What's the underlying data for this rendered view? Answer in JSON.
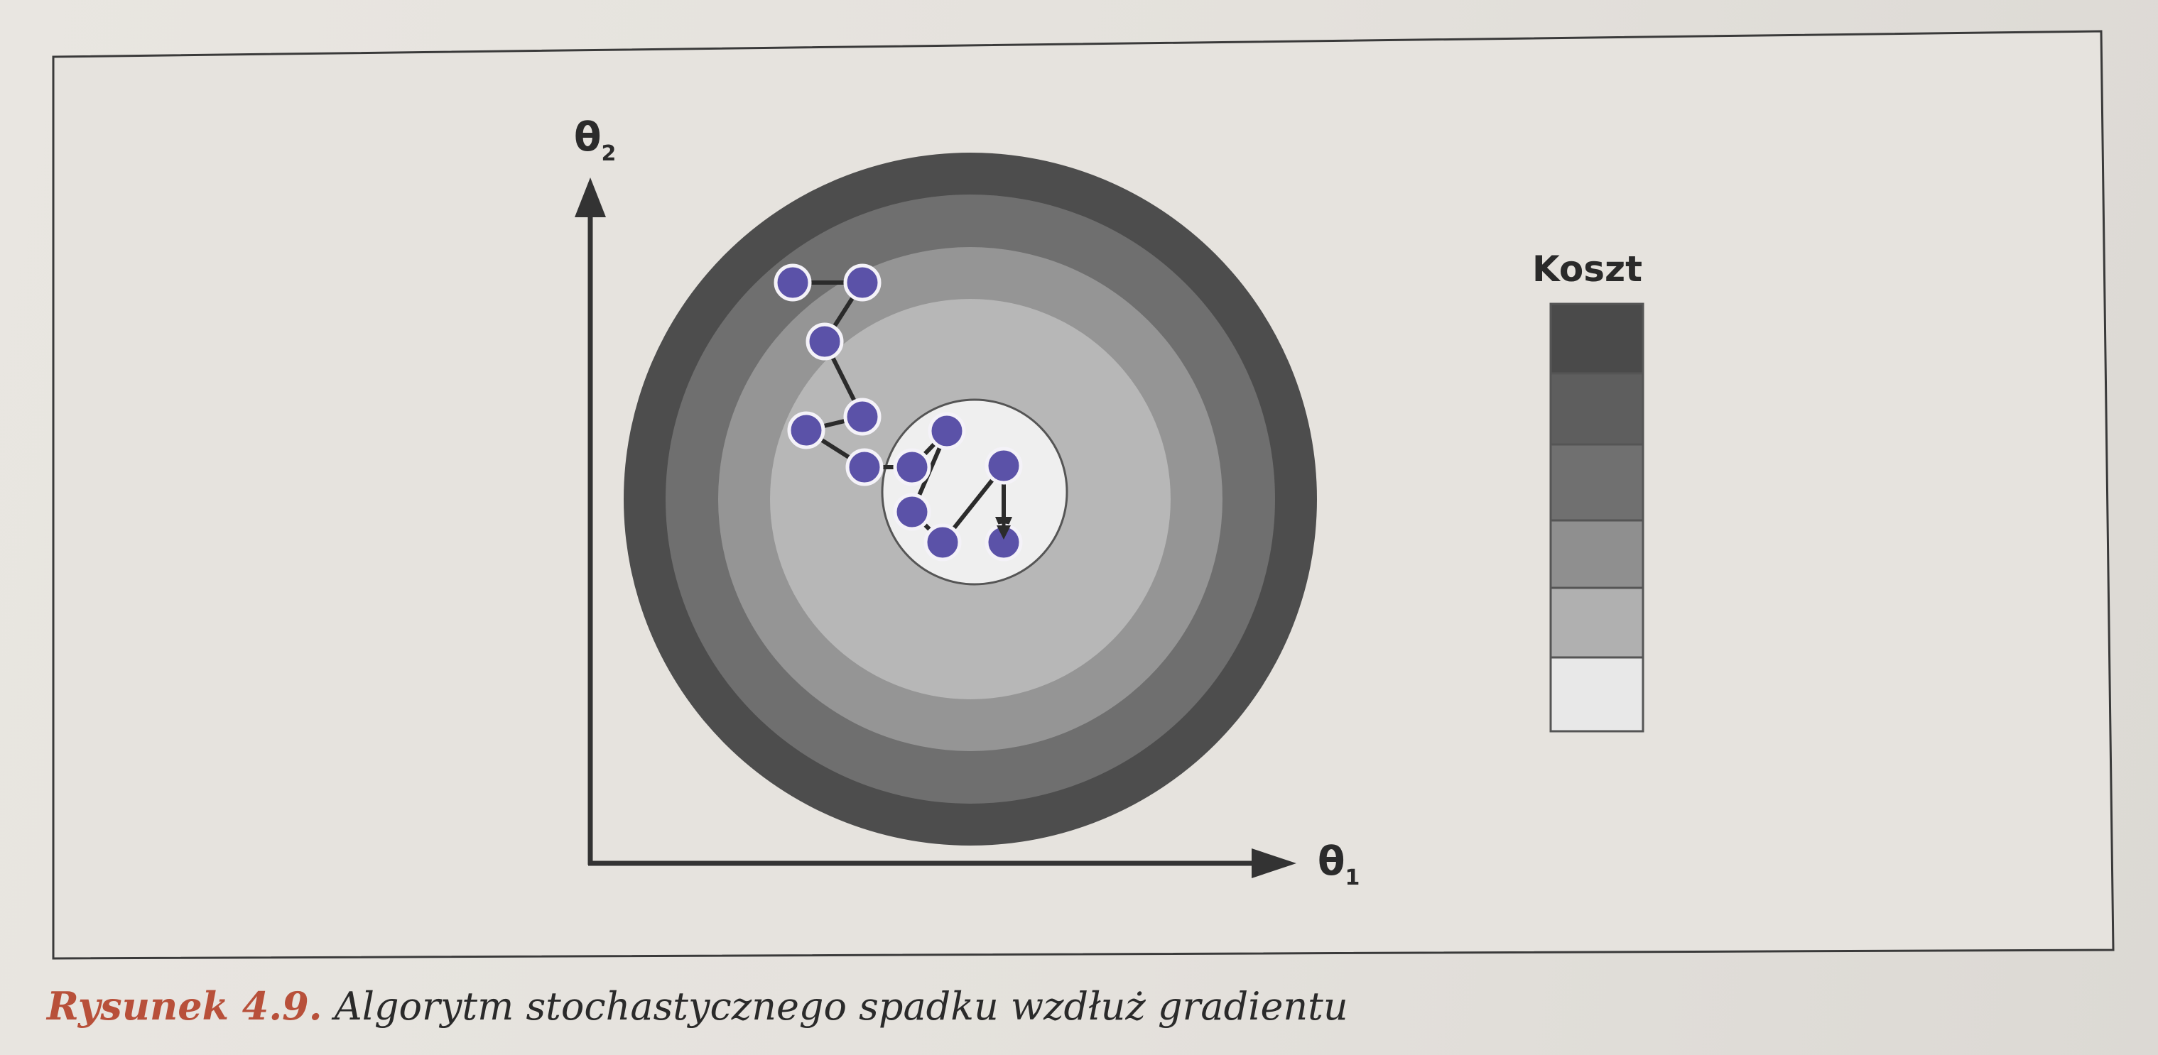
{
  "figure": {
    "axis_x_symbol": "θ",
    "axis_x_subscript": "1",
    "axis_y_symbol": "θ",
    "axis_y_subscript": "2",
    "legend_title": "Koszt",
    "caption_label": "Rysunek 4.9.",
    "caption_text": " Algorytm stochastycznego spadku wzdłuż gradientu"
  },
  "colors": {
    "contour_rings": [
      "#4d4d4d",
      "#6f6f6f",
      "#959595",
      "#b7b7b7",
      "#efefef"
    ],
    "legend_levels": [
      "#4a4a4a",
      "#5e5e5e",
      "#707070",
      "#8f8f8f",
      "#b0b0b0",
      "#e8e8e8"
    ],
    "path_point_fill": "#5b52a8",
    "path_point_stroke": "#f4f2f8",
    "path_line": "#2b2b2b",
    "caption_label": "#b8503a"
  }
}
